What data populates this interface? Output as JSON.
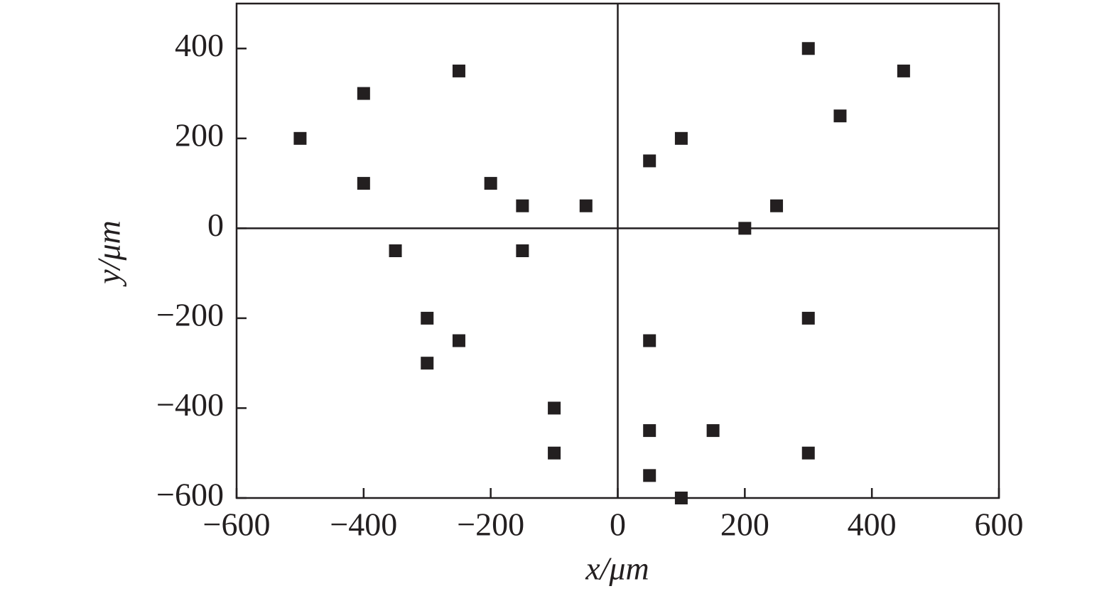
{
  "chart_data": {
    "type": "scatter",
    "x_label": "x/μm",
    "y_label": "y/μm",
    "color": "#231f20",
    "zero_lines": true,
    "xlim": [
      -600,
      600
    ],
    "ylim": [
      -600,
      500
    ],
    "xticks": [
      {
        "value": -600,
        "label": "−600"
      },
      {
        "value": -400,
        "label": "−400"
      },
      {
        "value": -200,
        "label": "−200"
      },
      0,
      200,
      400,
      600
    ],
    "yticks": [
      {
        "value": -600,
        "label": "−600"
      },
      {
        "value": -400,
        "label": "−400"
      },
      {
        "value": -200,
        "label": "−200"
      },
      0,
      200,
      400
    ],
    "x": [
      -500,
      -400,
      -400,
      -250,
      -200,
      -150,
      -50,
      -350,
      -150,
      -300,
      -250,
      -300,
      -100,
      -100,
      50,
      100,
      300,
      450,
      350,
      250,
      200,
      300,
      50,
      50,
      150,
      300,
      50,
      100
    ],
    "y": [
      200,
      300,
      100,
      350,
      100,
      50,
      50,
      -50,
      -50,
      -200,
      -250,
      -300,
      -400,
      -500,
      150,
      200,
      400,
      350,
      250,
      50,
      0,
      -200,
      -250,
      -450,
      -450,
      -500,
      -550,
      -600
    ]
  }
}
